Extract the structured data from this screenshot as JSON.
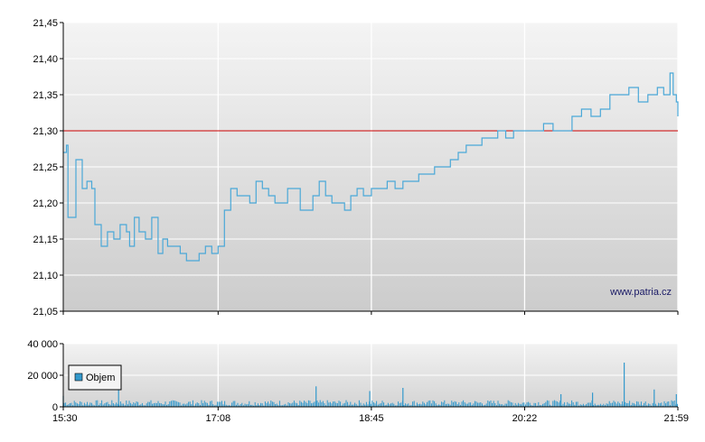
{
  "watermark": "www.patria.cz",
  "colors": {
    "line": "#4aa8d8",
    "reference": "#cc0000",
    "volume": "#3399cc",
    "legend_swatch": "#3399cc",
    "plot_bg_top": "#f4f4f4",
    "plot_bg_bottom": "#cccccc",
    "grid": "#ffffff"
  },
  "chart_data": [
    {
      "type": "line",
      "name": "price",
      "x_ticks": [
        "15:30",
        "17:08",
        "18:45",
        "20:22",
        "21:59"
      ],
      "y_ticks": [
        "21,05",
        "21,10",
        "21,15",
        "21,20",
        "21,25",
        "21,30",
        "21,35",
        "21,40",
        "21,45"
      ],
      "ylim": [
        21.05,
        21.45
      ],
      "xlim": [
        "15:30",
        "21:59"
      ],
      "grid": true,
      "reference_line": 21.3,
      "x": [
        "15:30",
        "15:32",
        "15:33",
        "15:36",
        "15:38",
        "15:42",
        "15:45",
        "15:48",
        "15:50",
        "15:54",
        "15:58",
        "16:02",
        "16:06",
        "16:10",
        "16:12",
        "16:15",
        "16:18",
        "16:22",
        "16:26",
        "16:30",
        "16:33",
        "16:36",
        "16:40",
        "16:44",
        "16:48",
        "16:52",
        "16:56",
        "17:00",
        "17:04",
        "17:08",
        "17:12",
        "17:16",
        "17:20",
        "17:24",
        "17:28",
        "17:32",
        "17:36",
        "17:40",
        "17:44",
        "17:48",
        "17:52",
        "17:56",
        "18:00",
        "18:04",
        "18:08",
        "18:12",
        "18:16",
        "18:20",
        "18:24",
        "18:28",
        "18:32",
        "18:36",
        "18:40",
        "18:45",
        "18:50",
        "18:55",
        "19:00",
        "19:05",
        "19:10",
        "19:15",
        "19:20",
        "19:25",
        "19:30",
        "19:35",
        "19:40",
        "19:45",
        "19:50",
        "19:55",
        "20:00",
        "20:05",
        "20:10",
        "20:15",
        "20:22",
        "20:28",
        "20:34",
        "20:40",
        "20:46",
        "20:52",
        "20:58",
        "21:04",
        "21:10",
        "21:16",
        "21:22",
        "21:28",
        "21:34",
        "21:40",
        "21:46",
        "21:50",
        "21:54",
        "21:56",
        "21:58",
        "21:59"
      ],
      "values": [
        21.27,
        21.28,
        21.18,
        21.18,
        21.26,
        21.22,
        21.23,
        21.22,
        21.17,
        21.14,
        21.16,
        21.15,
        21.17,
        21.16,
        21.14,
        21.18,
        21.16,
        21.15,
        21.18,
        21.13,
        21.15,
        21.14,
        21.14,
        21.13,
        21.12,
        21.12,
        21.13,
        21.14,
        21.13,
        21.14,
        21.19,
        21.22,
        21.21,
        21.21,
        21.2,
        21.23,
        21.22,
        21.21,
        21.2,
        21.2,
        21.22,
        21.22,
        21.19,
        21.19,
        21.21,
        21.23,
        21.21,
        21.2,
        21.2,
        21.19,
        21.21,
        21.22,
        21.21,
        21.22,
        21.22,
        21.23,
        21.22,
        21.23,
        21.23,
        21.24,
        21.24,
        21.25,
        21.25,
        21.26,
        21.27,
        21.28,
        21.28,
        21.29,
        21.29,
        21.3,
        21.29,
        21.3,
        21.3,
        21.3,
        21.31,
        21.3,
        21.3,
        21.32,
        21.33,
        21.32,
        21.33,
        21.35,
        21.35,
        21.36,
        21.34,
        21.35,
        21.36,
        21.35,
        21.38,
        21.35,
        21.34,
        21.32
      ]
    },
    {
      "type": "bar",
      "name": "Objem",
      "legend": [
        "Objem"
      ],
      "legend_position": "bottom-left",
      "y_ticks": [
        "0",
        "20 000",
        "40 000"
      ],
      "ylim": [
        0,
        40000
      ],
      "x_ticks": [
        "15:30",
        "17:08",
        "18:45",
        "20:22",
        "21:59"
      ],
      "xlim": [
        "15:30",
        "21:59"
      ],
      "grid": true,
      "spikes": [
        {
          "x": "15:30",
          "value": 7000
        },
        {
          "x": "16:05",
          "value": 20000
        },
        {
          "x": "18:10",
          "value": 13000
        },
        {
          "x": "18:44",
          "value": 10000
        },
        {
          "x": "19:05",
          "value": 12000
        },
        {
          "x": "20:45",
          "value": 8000
        },
        {
          "x": "21:05",
          "value": 9000
        },
        {
          "x": "21:25",
          "value": 28000
        },
        {
          "x": "21:44",
          "value": 11000
        },
        {
          "x": "21:58",
          "value": 8000
        }
      ],
      "baseline_level": 2500
    }
  ]
}
